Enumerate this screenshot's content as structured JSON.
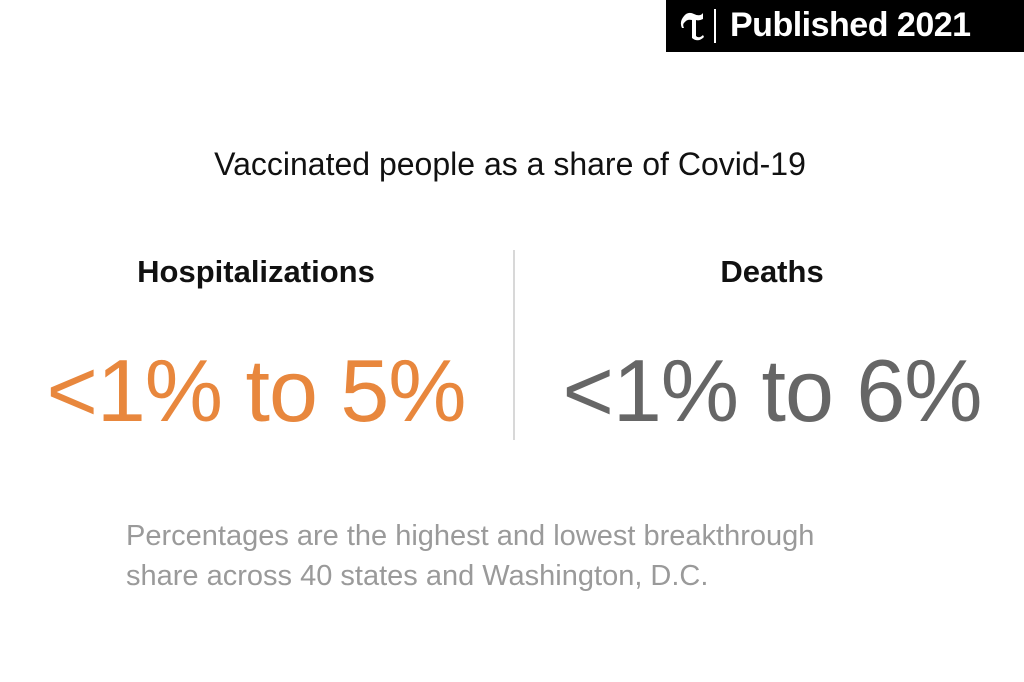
{
  "badge": {
    "label": "Published 2021"
  },
  "title": "Vaccinated people as a share of Covid-19",
  "stats": [
    {
      "label": "Hospitalizations",
      "value": "<1% to 5%",
      "color": "#e8873d"
    },
    {
      "label": "Deaths",
      "value": "<1% to 6%",
      "color": "#666666"
    }
  ],
  "note": "Percentages are the highest and lowest breakthrough share across 40 states and Washington, D.C."
}
